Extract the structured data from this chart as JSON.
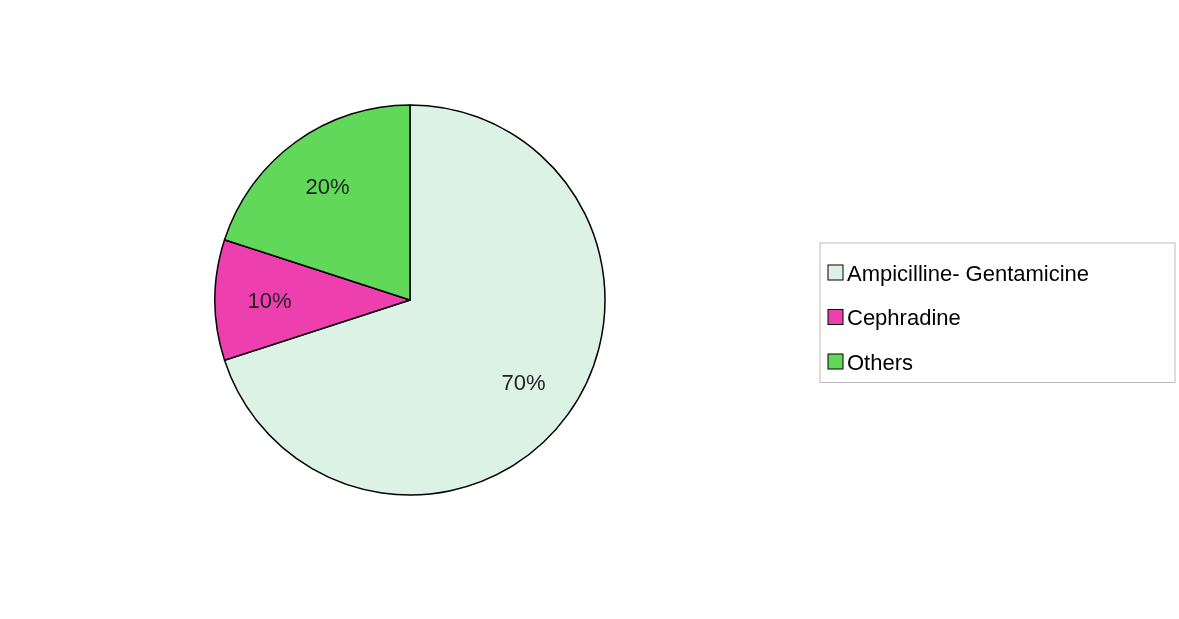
{
  "chart_data": {
    "type": "pie",
    "categories": [
      "Ampicilline- Gentamicine",
      "Cephradine",
      "Others"
    ],
    "values": [
      70,
      10,
      20
    ],
    "colors": [
      "#dcf2e4",
      "#ee3fae",
      "#62d85a"
    ],
    "value_labels": [
      "70%",
      "10%",
      "20%"
    ],
    "legend": "right"
  }
}
